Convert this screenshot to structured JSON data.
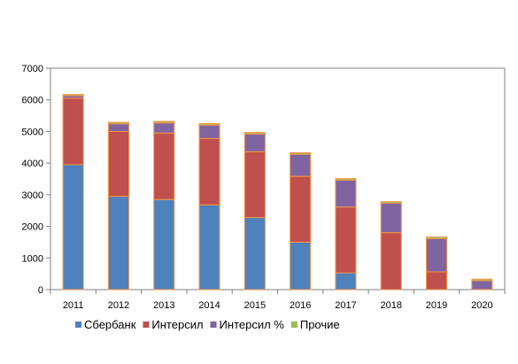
{
  "chart_data": {
    "type": "bar",
    "stacked": true,
    "categories": [
      "2011",
      "2012",
      "2013",
      "2014",
      "2015",
      "2016",
      "2017",
      "2018",
      "2019",
      "2020"
    ],
    "series": [
      {
        "name": "Сбербанк",
        "color": "#4F81BD",
        "values": [
          3950,
          2950,
          2850,
          2680,
          2280,
          1500,
          530,
          0,
          0,
          0
        ]
      },
      {
        "name": "Интерсил",
        "color": "#C0504D",
        "values": [
          2100,
          2050,
          2100,
          2100,
          2080,
          2080,
          2080,
          1800,
          560,
          0
        ]
      },
      {
        "name": "Интерсил %",
        "color": "#8064A2",
        "values": [
          80,
          240,
          320,
          420,
          560,
          700,
          850,
          930,
          1050,
          280
        ]
      },
      {
        "name": "Прочие",
        "color": "#9BBB59",
        "values": [
          40,
          50,
          50,
          50,
          50,
          50,
          50,
          50,
          50,
          50
        ]
      }
    ],
    "segment_outline_color": "#F79646",
    "ylim": [
      0,
      7000
    ],
    "yticks": [
      0,
      1000,
      2000,
      3000,
      4000,
      5000,
      6000,
      7000
    ],
    "grid": false,
    "legend_position": "bottom",
    "title": "",
    "xlabel": "",
    "ylabel": ""
  }
}
